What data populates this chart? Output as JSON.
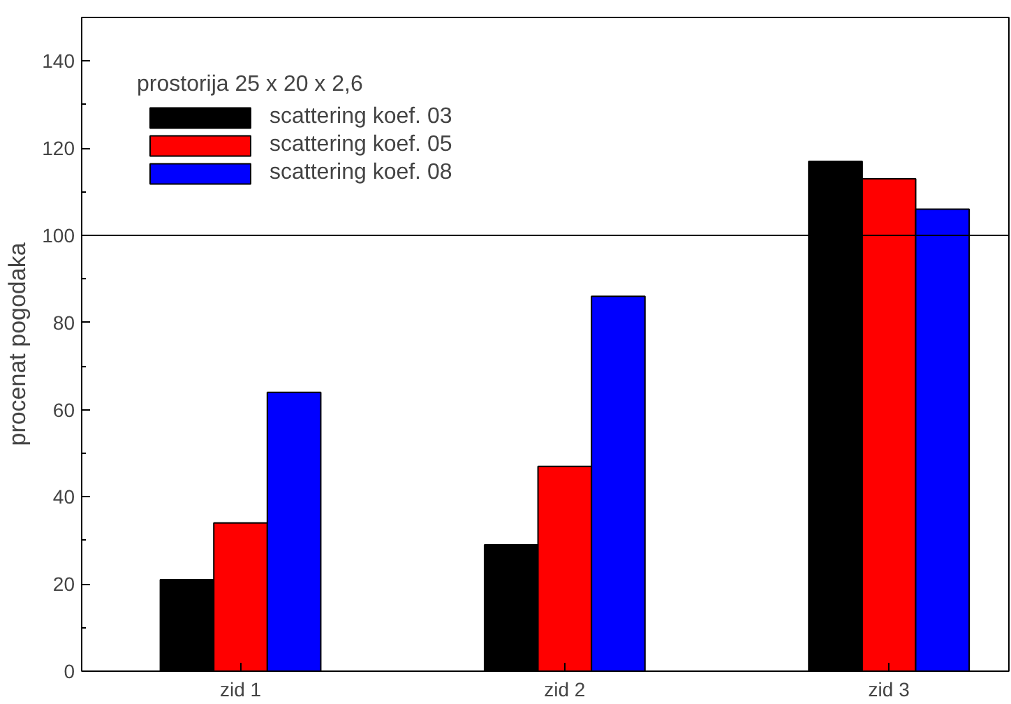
{
  "chart_data": {
    "type": "bar",
    "ylabel": "procenat pogodaka",
    "legend_title": "prostorija 25 x 20 x 2,6",
    "categories": [
      "zid 1",
      "zid 2",
      "zid 3"
    ],
    "series": [
      {
        "name": "scattering koef. 03",
        "color": "#000000",
        "values": [
          21,
          29,
          117
        ]
      },
      {
        "name": "scattering koef. 05",
        "color": "#ff0000",
        "values": [
          34,
          47,
          113
        ]
      },
      {
        "name": "scattering koef. 08",
        "color": "#0000ff",
        "values": [
          64,
          86,
          106
        ]
      }
    ],
    "ylim": [
      0,
      150
    ],
    "yticks": [
      0,
      20,
      40,
      60,
      80,
      100,
      120,
      140
    ],
    "ref_lines": [
      {
        "axis": "y",
        "value": 100,
        "label": null,
        "color": "#000000"
      }
    ],
    "legend": "top left",
    "grid": false
  }
}
